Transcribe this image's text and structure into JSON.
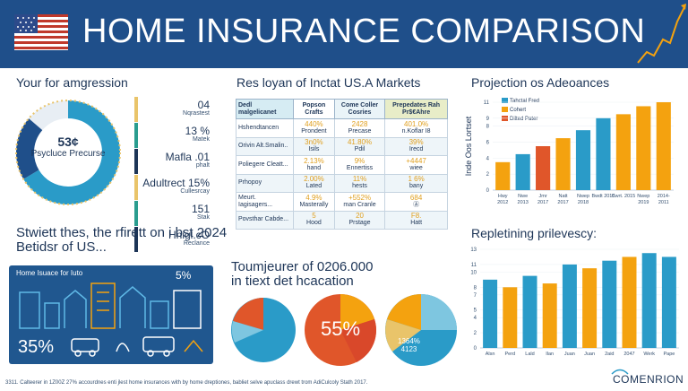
{
  "header": {
    "title": "HOME INSURANCE COMPARISON",
    "flag_icon": "us-flag-icon",
    "trend_icon": "trend-line-icon"
  },
  "left_panel": {
    "title": "Your for amgression",
    "donut_value": "53¢",
    "donut_label": "Psycluce Precurse",
    "metrics": [
      {
        "value": "04",
        "label": "Nqrastest",
        "color": "#e9c46a"
      },
      {
        "value": "13 %",
        "label": "Matek",
        "color": "#2a9d8f"
      },
      {
        "value": "Mafla .01",
        "label": "phalt",
        "color": "#1d3557"
      },
      {
        "value": "Adultrect 15%",
        "label": "Cullesrcay",
        "color": "#e9c46a"
      },
      {
        "value": "151",
        "label": "Stak",
        "color": "#2a9d8f"
      },
      {
        "value": "Hnigl.cO",
        "label": "Reclance",
        "color": "#1d3557"
      }
    ]
  },
  "table_section": {
    "title": "Res loyan of Inctat US.A Markets",
    "headers": [
      "Dedl malgelicanet",
      "Popson Crafts",
      "Come Coller Cosries",
      "Prepedates Rah Pr$€Ahre"
    ],
    "rows": [
      {
        "label": "Hshendtancen",
        "c1": "440%",
        "c1n": "Prondent",
        "c2": "2428",
        "c2n": "Precase",
        "c3": "401.0%",
        "c3n": "n.Koflar I8"
      },
      {
        "label": "Orivin Alt.Smalin..",
        "c1": "3n0%",
        "c1n": "Isils",
        "c2": "41.80%",
        "c2n": "Pdil",
        "c3": "39%",
        "c3n": "Irecd"
      },
      {
        "label": "Poliegere Cleatt...",
        "c1": "2.13%",
        "c1n": "hand",
        "c2": "9%",
        "c2n": "Ennertiss",
        "c3": "+4447",
        "c3n": "wiee"
      },
      {
        "label": "Prhopoy",
        "c1": "2.00%",
        "c1n": "Lated",
        "c2": "11%",
        "c2n": "hests",
        "c3": "1 6%",
        "c3n": "bany"
      },
      {
        "label": "Meurt. Iagisagers...",
        "c1": "4.9%",
        "c1n": "Masterally",
        "c2": "+552%",
        "c2n": "man Cranle",
        "c3": "684",
        "c3n": "Ⓐ"
      },
      {
        "label": "Povsthar Cabde...",
        "c1": "5",
        "c1n": "Hood",
        "c2": "20",
        "c2n": "Prstage",
        "c3": "F8.",
        "c3n": "Hatt"
      }
    ]
  },
  "projection": {
    "title": "Projection os Adeoances",
    "ylabel": "Inde Oos Lortset",
    "legend": [
      {
        "name": "Tahctal Fred",
        "color": "#2a9bc8"
      },
      {
        "name": "Cohert",
        "color": "#f4a20f"
      },
      {
        "name": "Dilted Pater",
        "color": "#e0562a"
      }
    ]
  },
  "chart_data": [
    {
      "type": "bar",
      "title": "Projection os Adeoances",
      "ylabel": "Inde Oos Lortset",
      "ylim": [
        0,
        11
      ],
      "yticks": [
        0,
        2,
        4,
        6,
        8,
        9,
        11
      ],
      "categories": [
        "Hwy, 2012",
        "Nwe, 2013",
        "Jmr, 2017",
        "Natt, 2017",
        "Nwep, 2018",
        "Bwdt 2015",
        "Cwrt. 2015",
        "Nwep, 2019",
        "2014-, 2011"
      ],
      "values": [
        3.5,
        4.5,
        5.5,
        6.5,
        7.5,
        9,
        9.5,
        10.5,
        11
      ],
      "colors": [
        "#f4a20f",
        "#2a9bc8",
        "#e0562a",
        "#f4a20f",
        "#2a9bc8",
        "#2a9bc8",
        "#f4a20f",
        "#f4a20f",
        "#f4a20f"
      ]
    },
    {
      "type": "bar",
      "title": "Repletining prilevescy:",
      "ylim": [
        0,
        13
      ],
      "yticks": [
        0,
        2,
        4,
        5,
        7,
        8,
        10,
        11,
        13
      ],
      "categories": [
        "Alsn",
        "Perd",
        "Lald",
        "Ilan",
        "Juan",
        "Juan",
        "2aid",
        "2047",
        "Werk",
        "Pape"
      ],
      "values": [
        9,
        8,
        9.5,
        8.5,
        11,
        10.5,
        11.5,
        12,
        12.5,
        12
      ],
      "colors": [
        "#2a9bc8",
        "#f4a20f",
        "#2a9bc8",
        "#f4a20f",
        "#2a9bc8",
        "#f4a20f",
        "#2a9bc8",
        "#f4a20f",
        "#2a9bc8",
        "#2a9bc8"
      ]
    }
  ],
  "bottom_left": {
    "title": "Stwiett thes, the rfirett on i bst 2024 Betidsr of US...",
    "title_line1": "Stwiett thes, the rfirett on i bst 2024",
    "title_line2": "Betidsr of US...",
    "illus_label": "Home Isuace for Iuto",
    "pct_top": "5%",
    "pct_bottom": "35%"
  },
  "middle_bottom": {
    "line1": "Toumjeurer of 0206.000",
    "line2": "in tiext det hcacation",
    "pie_mid_value": "55%",
    "pie_right_label1": "1364%",
    "pie_right_label2": "4123"
  },
  "replenishing": {
    "title": "Repletining prilevescy:"
  },
  "footer": {
    "text": "3311. Calteerer in 1Z00Z 27% accourdnes enti jlest home insurances with by home dreptiones, babliet selve apuclass drewt trom AdiCulcoly Stath 2017.",
    "logo": "COMENRION"
  }
}
